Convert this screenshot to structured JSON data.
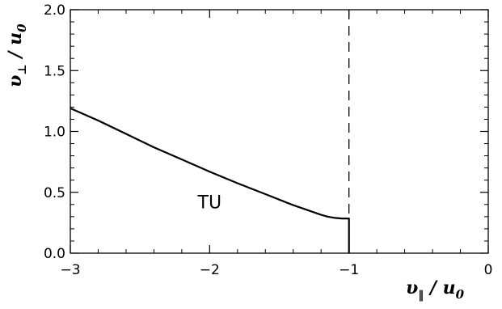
{
  "chart_data": {
    "type": "line",
    "xlim": [
      -3,
      0
    ],
    "ylim": [
      0,
      2
    ],
    "x_ticks": [
      -3,
      -2,
      -1,
      0
    ],
    "x_tick_labels": [
      "−3",
      "−2",
      "−1",
      "0"
    ],
    "y_ticks": [
      0,
      0.5,
      1,
      1.5,
      2
    ],
    "y_tick_labels": [
      "0.0",
      "0.5",
      "1.0",
      "1.5",
      "2.0"
    ],
    "xlabel": {
      "var": "υ",
      "sub": "‖",
      "sep": " / ",
      "den": "u",
      "den_sub": "0"
    },
    "ylabel": {
      "var": "υ",
      "sub": "⊥",
      "sep": " / ",
      "den": "u",
      "den_sub": "0"
    },
    "grid": false,
    "series": [
      {
        "style": "solid",
        "x": [
          -3.0,
          -2.8,
          -2.6,
          -2.4,
          -2.2,
          -2.0,
          -1.8,
          -1.6,
          -1.5,
          -1.4,
          -1.3,
          -1.2,
          -1.15,
          -1.1,
          -1.05,
          -1.0,
          -1.0
        ],
        "y": [
          1.19,
          1.09,
          0.98,
          0.87,
          0.77,
          0.67,
          0.575,
          0.485,
          0.44,
          0.395,
          0.355,
          0.315,
          0.3,
          0.29,
          0.285,
          0.285,
          0.0
        ]
      }
    ],
    "reference_lines": [
      {
        "orientation": "vertical",
        "x": -1,
        "style": "dashed"
      }
    ],
    "annotations": [
      {
        "text": "TU",
        "x": -2.0,
        "y": 0.37
      }
    ]
  }
}
